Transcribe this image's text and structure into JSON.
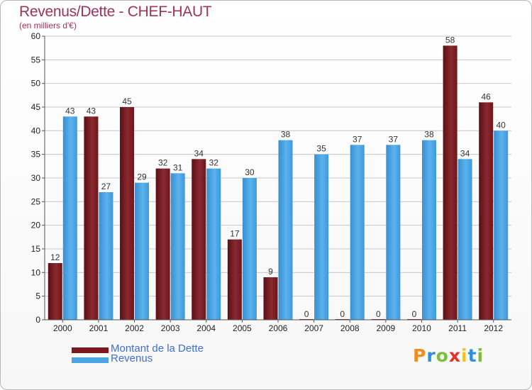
{
  "chart_data": {
    "type": "bar",
    "title": "Revenus/Dette - CHEF-HAUT",
    "subtitle": "(en milliers d'€)",
    "categories": [
      "2000",
      "2001",
      "2002",
      "2003",
      "2004",
      "2005",
      "2006",
      "2007",
      "2008",
      "2009",
      "2010",
      "2011",
      "2012"
    ],
    "series": [
      {
        "name": "Montant de la Dette",
        "color": "#7a1a1f",
        "values": [
          12,
          43,
          45,
          32,
          34,
          17,
          9,
          0,
          0,
          0,
          0,
          58,
          46
        ]
      },
      {
        "name": "Revenus",
        "color": "#4aa3e3",
        "values": [
          43,
          27,
          29,
          31,
          32,
          30,
          38,
          35,
          37,
          37,
          38,
          34,
          40
        ]
      }
    ],
    "ylim": [
      0,
      60
    ],
    "yticks": [
      0,
      5,
      10,
      15,
      20,
      25,
      30,
      35,
      40,
      45,
      50,
      55,
      60
    ],
    "grid": true,
    "legend_position": "bottom-left"
  },
  "logo": {
    "text": "Proxiti",
    "colors": [
      "#f28c1e",
      "#2f8fd8",
      "#7cbf3a",
      "#e5332a",
      "#f2c21e",
      "#2f8fd8",
      "#7cbf3a"
    ]
  }
}
